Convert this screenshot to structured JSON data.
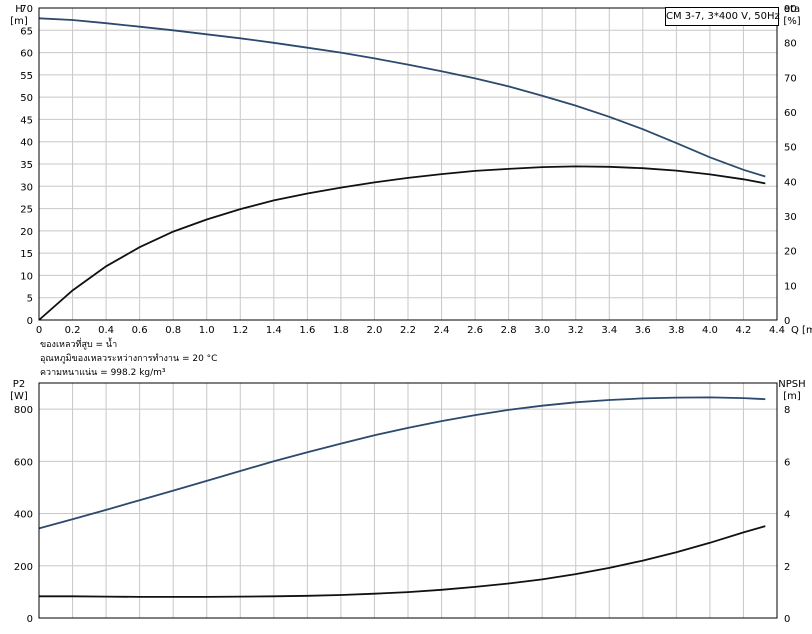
{
  "pump_label": "CM 3-7, 3*400 V, 50Hz",
  "info": {
    "liquid": "ของเหลวที่สูบ = น้ำ",
    "temperature": "อุณหภูมิของเหลวระหว่างการทำงาน = 20 °C",
    "density": "ความหนาแน่น = 998.2 kg/m³"
  },
  "colors": {
    "blue_curve": "#2b4a6e",
    "black_curve": "#111111",
    "grid": "#c8c8c8"
  },
  "chart_data": [
    {
      "type": "line",
      "panel": "top",
      "xlabel": "Q [m³/h]",
      "xlim": [
        0,
        4.4
      ],
      "xticks": [
        "0",
        "0.2",
        "0.4",
        "0.6",
        "0.8",
        "1.0",
        "1.2",
        "1.4",
        "1.6",
        "1.8",
        "2.0",
        "2.2",
        "2.4",
        "2.6",
        "2.8",
        "3.0",
        "3.2",
        "3.4",
        "3.6",
        "3.8",
        "4.0",
        "4.2",
        "4.4"
      ],
      "y_left": {
        "label_top": "H",
        "label_unit": "[m]",
        "lim": [
          0,
          70
        ],
        "ticks": [
          "0",
          "5",
          "10",
          "15",
          "20",
          "25",
          "30",
          "35",
          "40",
          "45",
          "50",
          "55",
          "60",
          "65",
          "70"
        ]
      },
      "y_right": {
        "label_top": "eta",
        "label_unit": "[%]",
        "lim": [
          0,
          90
        ],
        "ticks": [
          "0",
          "10",
          "20",
          "30",
          "40",
          "50",
          "60",
          "70",
          "80",
          "90"
        ]
      },
      "grid": true,
      "series": [
        {
          "axis": "left",
          "color": "blue",
          "x": [
            0,
            0.2,
            0.4,
            0.6,
            0.8,
            1.0,
            1.2,
            1.4,
            1.6,
            1.8,
            2.0,
            2.2,
            2.4,
            2.6,
            2.8,
            3.0,
            3.2,
            3.4,
            3.6,
            3.8,
            4.0,
            4.2,
            4.33
          ],
          "y": [
            67.7,
            67.3,
            66.6,
            65.8,
            65.0,
            64.1,
            63.2,
            62.2,
            61.1,
            60.0,
            58.7,
            57.3,
            55.8,
            54.2,
            52.4,
            50.3,
            48.1,
            45.6,
            42.8,
            39.7,
            36.5,
            33.7,
            32.2
          ]
        },
        {
          "axis": "right",
          "color": "black",
          "x": [
            0,
            0.2,
            0.4,
            0.6,
            0.8,
            1.0,
            1.2,
            1.4,
            1.6,
            1.8,
            2.0,
            2.2,
            2.4,
            2.6,
            2.8,
            3.0,
            3.2,
            3.4,
            3.6,
            3.8,
            4.0,
            4.2,
            4.33
          ],
          "y": [
            0,
            8.5,
            15.5,
            21,
            25.5,
            29,
            32,
            34.5,
            36.5,
            38.2,
            39.7,
            41,
            42.1,
            43,
            43.6,
            44.1,
            44.3,
            44.2,
            43.8,
            43.1,
            42,
            40.6,
            39.4
          ]
        }
      ]
    },
    {
      "type": "line",
      "panel": "bottom",
      "xlim": [
        0,
        4.4
      ],
      "y_left": {
        "label_top": "P2",
        "label_unit": "[W]",
        "lim": [
          0,
          900
        ],
        "ticks": [
          "0",
          "200",
          "400",
          "600",
          "800"
        ]
      },
      "y_right": {
        "label_top": "NPSH",
        "label_unit": "[m]",
        "lim": [
          0,
          9
        ],
        "ticks": [
          "0",
          "2",
          "4",
          "6",
          "8"
        ]
      },
      "grid": true,
      "series": [
        {
          "axis": "left",
          "color": "blue",
          "x": [
            0,
            0.2,
            0.4,
            0.6,
            0.8,
            1.0,
            1.2,
            1.4,
            1.6,
            1.8,
            2.0,
            2.2,
            2.4,
            2.6,
            2.8,
            3.0,
            3.2,
            3.4,
            3.6,
            3.8,
            4.0,
            4.2,
            4.33
          ],
          "y": [
            343,
            378,
            414,
            451,
            488,
            525,
            563,
            600,
            635,
            668,
            700,
            728,
            754,
            777,
            797,
            813,
            826,
            835,
            841,
            844,
            845,
            842,
            838
          ]
        },
        {
          "axis": "right",
          "color": "black",
          "x": [
            0,
            0.2,
            0.4,
            0.6,
            0.8,
            1.0,
            1.2,
            1.4,
            1.6,
            1.8,
            2.0,
            2.2,
            2.4,
            2.6,
            2.8,
            3.0,
            3.2,
            3.4,
            3.6,
            3.8,
            4.0,
            4.2,
            4.33
          ],
          "y": [
            0.83,
            0.83,
            0.82,
            0.81,
            0.81,
            0.81,
            0.82,
            0.83,
            0.85,
            0.88,
            0.93,
            0.99,
            1.08,
            1.19,
            1.32,
            1.48,
            1.68,
            1.92,
            2.2,
            2.52,
            2.88,
            3.28,
            3.52
          ]
        }
      ]
    }
  ]
}
